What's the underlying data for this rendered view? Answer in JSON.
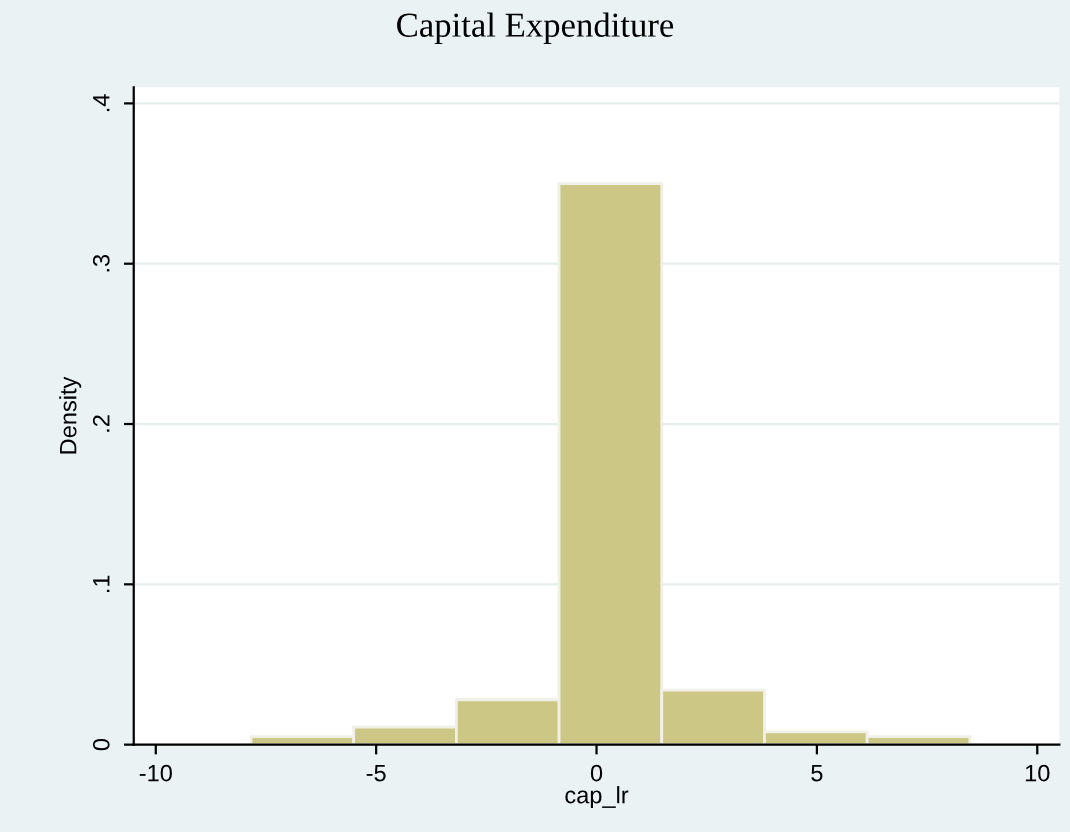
{
  "chart_data": {
    "type": "histogram",
    "title": "Capital Expenditure",
    "xlabel": "cap_lr",
    "ylabel": "Density",
    "bins": [
      -7.84,
      -5.51,
      -3.18,
      -0.85,
      1.48,
      3.81,
      6.14,
      8.47
    ],
    "values": [
      0.005,
      0.011,
      0.028,
      0.35,
      0.034,
      0.008,
      0.005
    ],
    "color": "#cdc785",
    "xlim": [
      -10.5,
      10.5
    ],
    "xticks": [
      -10,
      -5,
      0,
      5,
      10
    ],
    "ylim": [
      0,
      0.41
    ],
    "yticks": [
      {
        "value": 0,
        "label": "0"
      },
      {
        "value": 0.1,
        "label": ".1"
      },
      {
        "value": 0.2,
        "label": ".2"
      },
      {
        "value": 0.3,
        "label": ".3"
      },
      {
        "value": 0.4,
        "label": ".4"
      }
    ],
    "grid": "y"
  }
}
